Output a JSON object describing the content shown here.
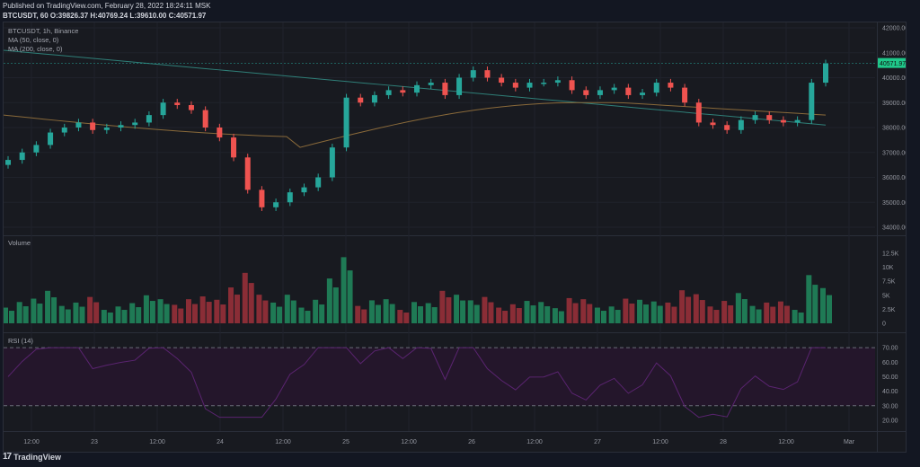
{
  "header": {
    "published": "Published on TradingView.com, February 28, 2022 18:24:11 MSK",
    "symbol_line": "BTCUSDT, 60",
    "ohlc": "O:39826.37 H:40769.24 L:39610.00 C:40571.97"
  },
  "legend": {
    "title": "BTCUSDT, 1h, Binance",
    "ma50": "MA (50, close, 0)",
    "ma200": "MA (200, close, 0)",
    "volume": "Volume",
    "rsi": "RSI (14)"
  },
  "footer": {
    "brand": "TradingView"
  },
  "colors": {
    "up": "#26a69a",
    "down": "#ef5350",
    "bg": "#181a20",
    "ma50": "#8a6a3a",
    "ma200": "#2f7f78",
    "rsi": "#4a1f5a"
  },
  "chart_data": [
    {
      "type": "candlestick",
      "title": "BTCUSDT, 1h, Binance",
      "last_price": "40571.97",
      "y_ticks": [
        "42000.00",
        "41000.00",
        "40000.00",
        "39000.00",
        "38000.00",
        "37000.00",
        "36000.00",
        "35000.00",
        "34000.00"
      ],
      "ylim": [
        33800,
        42200
      ],
      "x_ticks": [
        "12:00",
        "23",
        "12:00",
        "24",
        "12:00",
        "25",
        "12:00",
        "26",
        "12:00",
        "27",
        "12:00",
        "28",
        "12:00",
        "Mar"
      ],
      "series": [
        {
          "name": "MA (50, close, 0)",
          "approx": "~38500 falling to 37200 on 24th, rising to ~39000 on 27th, ~38600 end"
        },
        {
          "name": "MA (200, close, 0)",
          "approx": "~41100 declining steadily to ~38100 at end"
        }
      ],
      "approx_closes": [
        36700,
        37000,
        37300,
        37800,
        38000,
        38200,
        37900,
        38000,
        38100,
        38200,
        38500,
        39000,
        38900,
        38700,
        38000,
        37600,
        36800,
        35500,
        34800,
        35000,
        35400,
        35600,
        36000,
        37200,
        39200,
        39000,
        39300,
        39500,
        39400,
        39700,
        39800,
        39300,
        40000,
        40300,
        40000,
        39800,
        39600,
        39800,
        39800,
        39900,
        39500,
        39300,
        39500,
        39600,
        39300,
        39400,
        39800,
        39600,
        39000,
        38200,
        38100,
        37900,
        38300,
        38500,
        38300,
        38200,
        38300,
        39800,
        40571.97
      ]
    },
    {
      "type": "bar",
      "title": "Volume",
      "y_ticks": [
        "12.5K",
        "10K",
        "7.5K",
        "5K",
        "2.5K",
        "0"
      ],
      "ylim": [
        0,
        13000
      ]
    },
    {
      "type": "line",
      "title": "RSI (14)",
      "y_ticks": [
        "70.00",
        "60.00",
        "50.00",
        "40.00",
        "30.00",
        "20.00"
      ],
      "ylim": [
        15,
        75
      ],
      "bands": [
        30,
        70
      ],
      "last_value": 70
    }
  ]
}
